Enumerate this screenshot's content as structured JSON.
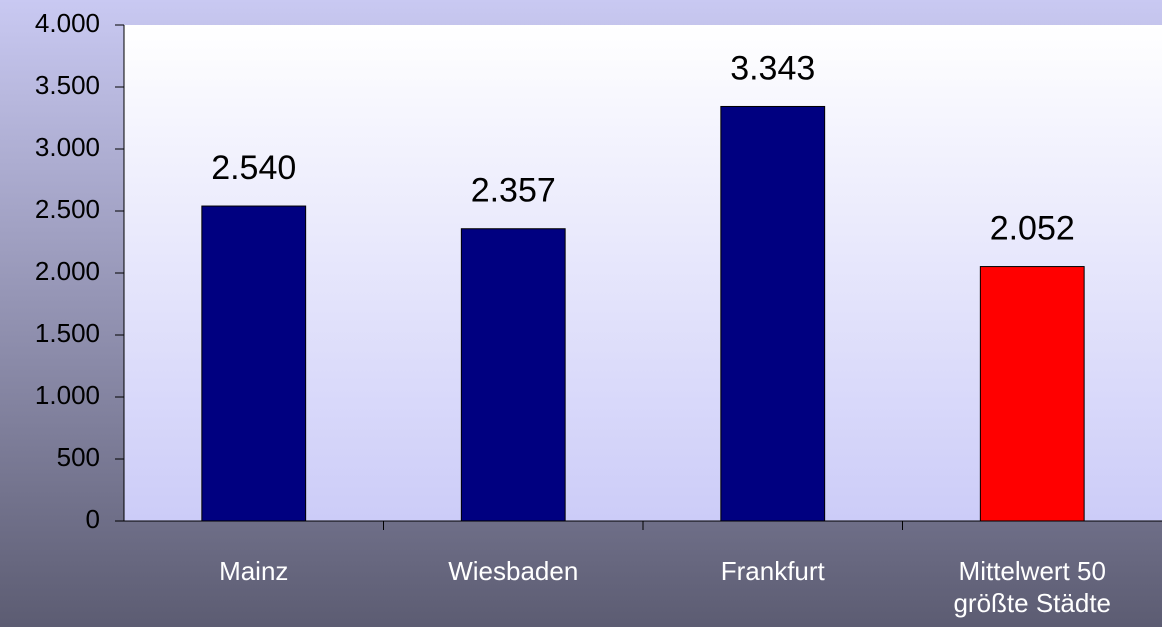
{
  "chart_data": {
    "type": "bar",
    "categories": [
      "Mainz",
      "Wiesbaden",
      "Frankfurt",
      "Mittelwert 50 größte Städte"
    ],
    "values": [
      2540,
      2357,
      3343,
      2052
    ],
    "value_labels": [
      "2.540",
      "2.357",
      "3.343",
      "2.052"
    ],
    "colors": [
      "#000080",
      "#000080",
      "#000080",
      "#ff0000"
    ],
    "ylim": [
      0,
      4000
    ],
    "yticks": [
      0,
      500,
      {
        "value": 1000,
        "label": "1.000"
      },
      {
        "value": 1500,
        "label": "1.500"
      },
      {
        "value": 2000,
        "label": "2.000"
      },
      {
        "value": 2500,
        "label": "2.500"
      },
      {
        "value": 3000,
        "label": "3.000"
      },
      {
        "value": 3500,
        "label": "3.500"
      },
      {
        "value": 4000,
        "label": "4.000"
      }
    ],
    "grid": false
  }
}
